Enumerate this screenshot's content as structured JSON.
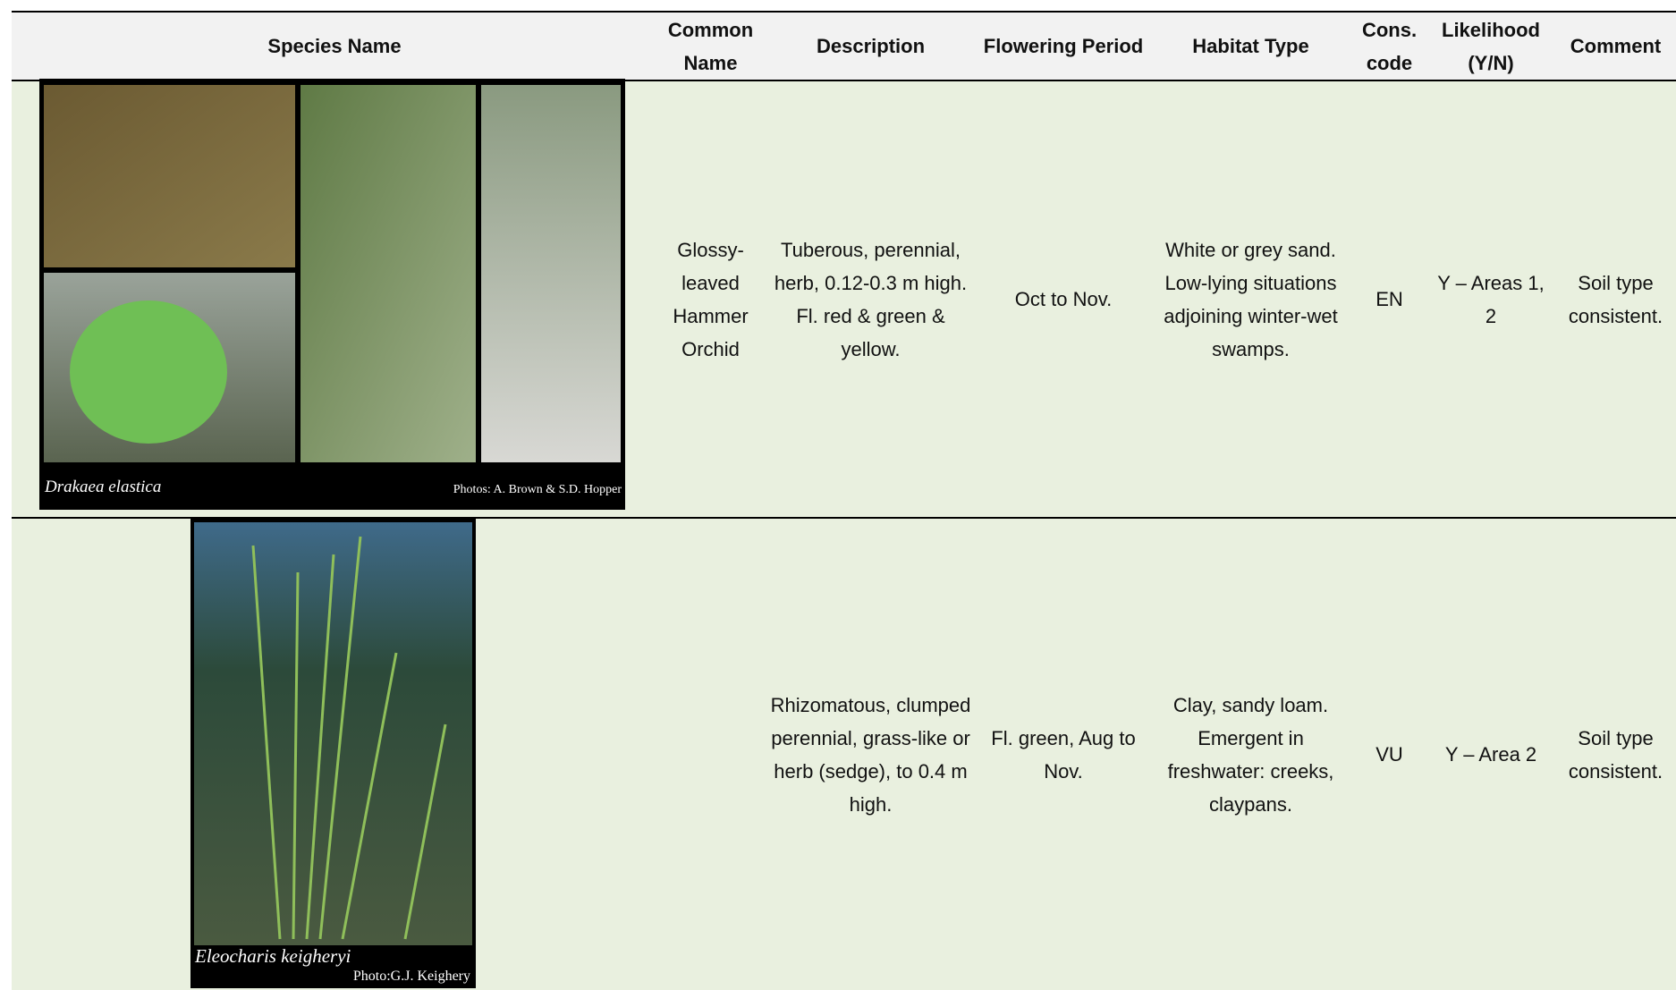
{
  "table": {
    "header": [
      "Species Name",
      "Common Name",
      "Description",
      "Flowering Period",
      "Habitat Type",
      "Cons. code",
      "Likelihood (Y/N)",
      "Comment"
    ],
    "rows": [
      {
        "photo": {
          "caption": "Drakaea elastica",
          "credit": "Photos: A. Brown & S.D. Hopper"
        },
        "common_name": "Glossy-leaved Hammer Orchid",
        "description": "Tuberous, perennial, herb, 0.12-0.3 m high. Fl. red & green & yellow.",
        "flowering_period": "Oct to Nov.",
        "habitat_type": "White or grey sand. Low-lying situations adjoining winter-wet swamps.",
        "cons_code": "EN",
        "likelihood": "Y – Areas 1, 2",
        "comment": "Soil type consistent."
      },
      {
        "photo": {
          "caption": "Eleocharis keigheryi",
          "credit": "Photo:G.J. Keighery"
        },
        "description": "Rhizomatous, clumped perennial, grass-like or herb (sedge), to 0.4 m high.",
        "flowering_period": "Fl. green, Aug to Nov.",
        "habitat_type": "Clay, sandy loam. Emergent in freshwater: creeks, claypans.",
        "cons_code": "VU",
        "likelihood": "Y – Area 2",
        "comment": "Soil type consistent."
      }
    ]
  }
}
